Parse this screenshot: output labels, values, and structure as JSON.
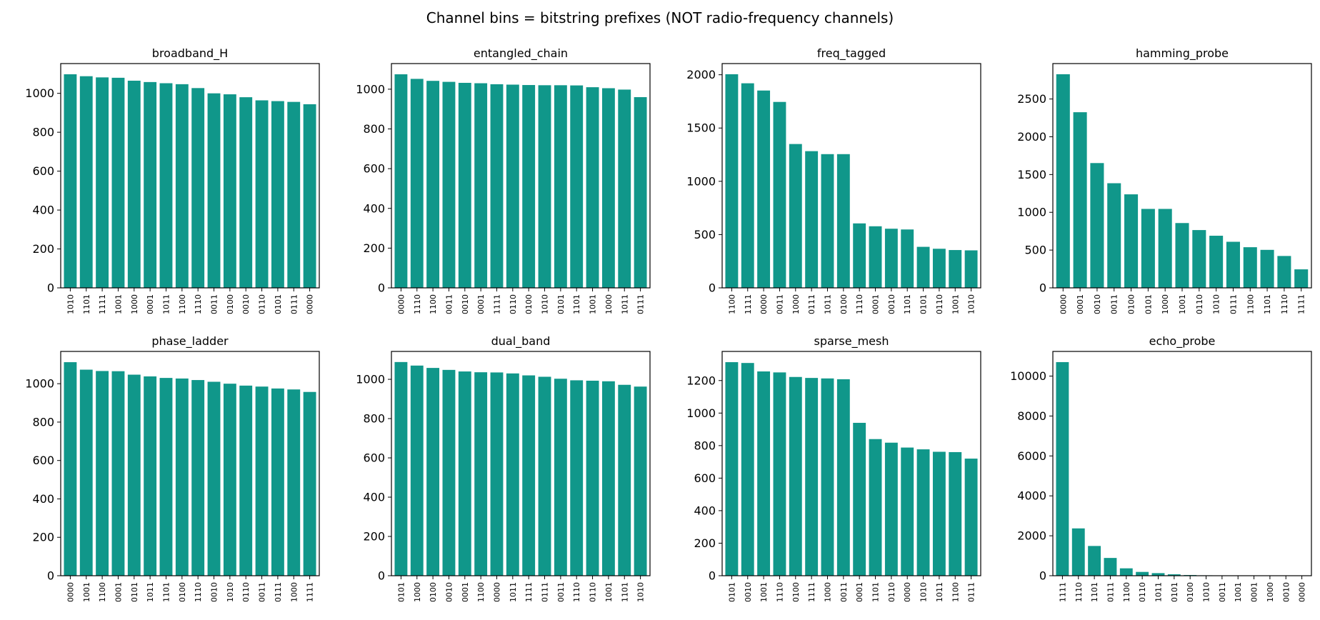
{
  "figure_title": "Channel bins = bitstring prefixes (NOT radio-frequency channels)",
  "bar_color": "#10978a",
  "chart_data": [
    {
      "type": "bar",
      "title": "broadband_H",
      "categories": [
        "1010",
        "1101",
        "1111",
        "1001",
        "1000",
        "0001",
        "1011",
        "1100",
        "1110",
        "0011",
        "0100",
        "0010",
        "0110",
        "0101",
        "0111",
        "0000"
      ],
      "values": [
        1098,
        1088,
        1082,
        1080,
        1065,
        1058,
        1052,
        1047,
        1027,
        1000,
        995,
        980,
        964,
        960,
        956,
        944
      ],
      "ylim": [
        0,
        1153
      ],
      "yticks": [
        0,
        200,
        400,
        600,
        800,
        1000
      ]
    },
    {
      "type": "bar",
      "title": "entangled_chain",
      "categories": [
        "0000",
        "1110",
        "1100",
        "0011",
        "0010",
        "0001",
        "1111",
        "0110",
        "0100",
        "1010",
        "0101",
        "1101",
        "1001",
        "1000",
        "1011",
        "0111"
      ],
      "values": [
        1075,
        1052,
        1042,
        1037,
        1032,
        1030,
        1025,
        1023,
        1021,
        1020,
        1020,
        1019,
        1010,
        1005,
        998,
        960
      ],
      "ylim": [
        0,
        1129
      ],
      "yticks": [
        0,
        200,
        400,
        600,
        800,
        1000
      ]
    },
    {
      "type": "bar",
      "title": "freq_tagged",
      "categories": [
        "1100",
        "1111",
        "0000",
        "0011",
        "1000",
        "0111",
        "1011",
        "0100",
        "1110",
        "0001",
        "0010",
        "1101",
        "0101",
        "0110",
        "1001",
        "1010"
      ],
      "values": [
        2005,
        1920,
        1852,
        1745,
        1350,
        1283,
        1255,
        1255,
        605,
        578,
        555,
        548,
        385,
        367,
        355,
        352
      ],
      "ylim": [
        0,
        2105
      ],
      "yticks": [
        0,
        500,
        1000,
        1500,
        2000
      ]
    },
    {
      "type": "bar",
      "title": "hamming_probe",
      "categories": [
        "0000",
        "0001",
        "0010",
        "0011",
        "0100",
        "0101",
        "1000",
        "1001",
        "0110",
        "1010",
        "0111",
        "1100",
        "1101",
        "1110",
        "1111"
      ],
      "values": [
        2828,
        2325,
        1652,
        1385,
        1238,
        1045,
        1045,
        858,
        765,
        690,
        610,
        538,
        503,
        422,
        245
      ],
      "ylim": [
        0,
        2969
      ],
      "yticks": [
        0,
        500,
        1000,
        1500,
        2000,
        2500
      ]
    },
    {
      "type": "bar",
      "title": "phase_ladder",
      "categories": [
        "0000",
        "1001",
        "1100",
        "0001",
        "0101",
        "1011",
        "1101",
        "0100",
        "1110",
        "0010",
        "1010",
        "0110",
        "0011",
        "0111",
        "1000",
        "1111"
      ],
      "values": [
        1112,
        1073,
        1066,
        1065,
        1047,
        1038,
        1030,
        1027,
        1019,
        1010,
        1000,
        990,
        985,
        975,
        970,
        957
      ],
      "ylim": [
        0,
        1168
      ],
      "yticks": [
        0,
        200,
        400,
        600,
        800,
        1000
      ]
    },
    {
      "type": "bar",
      "title": "dual_band",
      "categories": [
        "0101",
        "1000",
        "0100",
        "0010",
        "0001",
        "1100",
        "0000",
        "1011",
        "1111",
        "0111",
        "0011",
        "1110",
        "0110",
        "1001",
        "1101",
        "1010"
      ],
      "values": [
        1088,
        1070,
        1058,
        1048,
        1040,
        1036,
        1035,
        1030,
        1020,
        1013,
        1003,
        995,
        993,
        990,
        972,
        963
      ],
      "ylim": [
        0,
        1142
      ],
      "yticks": [
        0,
        200,
        400,
        600,
        800,
        1000
      ]
    },
    {
      "type": "bar",
      "title": "sparse_mesh",
      "categories": [
        "0101",
        "0010",
        "1001",
        "1110",
        "0100",
        "1111",
        "1000",
        "0011",
        "0001",
        "1101",
        "0110",
        "0000",
        "1010",
        "1011",
        "1100",
        "0111"
      ],
      "values": [
        1313,
        1308,
        1256,
        1250,
        1222,
        1216,
        1213,
        1208,
        940,
        840,
        818,
        788,
        777,
        762,
        760,
        720
      ],
      "ylim": [
        0,
        1379
      ],
      "yticks": [
        0,
        200,
        400,
        600,
        800,
        1000,
        1200
      ]
    },
    {
      "type": "bar",
      "title": "echo_probe",
      "categories": [
        "1111",
        "1110",
        "1101",
        "0111",
        "1100",
        "0110",
        "1011",
        "0101",
        "0100",
        "1010",
        "0011",
        "1001",
        "0001",
        "1000",
        "0010",
        "0000"
      ],
      "values": [
        10700,
        2370,
        1490,
        890,
        370,
        190,
        130,
        70,
        35,
        20,
        12,
        8,
        5,
        4,
        3,
        2
      ],
      "ylim": [
        0,
        11235
      ],
      "yticks": [
        0,
        2000,
        4000,
        6000,
        8000,
        10000
      ]
    }
  ]
}
